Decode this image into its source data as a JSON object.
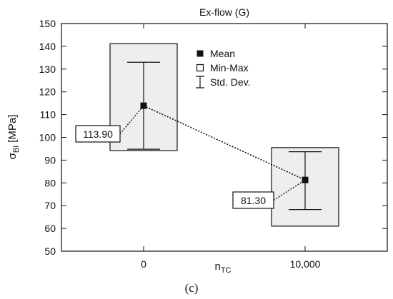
{
  "chart_data": {
    "type": "box",
    "title": "Ex-flow (G)",
    "xlabel_main": "n",
    "xlabel_sub": "TC",
    "ylabel_main": "σ",
    "ylabel_sub": "BI",
    "ylabel_unit": "[MPa]",
    "ylim": [
      50,
      150
    ],
    "yticks": [
      50,
      60,
      70,
      80,
      90,
      100,
      110,
      120,
      130,
      140,
      150
    ],
    "categories": [
      "0",
      "10,000"
    ],
    "mean": [
      113.9,
      81.3
    ],
    "mean_labels": [
      "113.90",
      "81.30"
    ],
    "min": [
      94.2,
      61.0
    ],
    "max": [
      141.2,
      95.5
    ],
    "std_low": [
      94.8,
      68.3
    ],
    "std_high": [
      133.0,
      93.7
    ],
    "legend": [
      {
        "marker": "filled-square",
        "label": "Mean"
      },
      {
        "marker": "open-square",
        "label": "Min-Max"
      },
      {
        "marker": "error-bar",
        "label": "Std. Dev."
      }
    ],
    "legend_position": "top-right",
    "grid": false,
    "colors": {
      "box_fill": "#eeeeee",
      "stroke": "#111111",
      "mean_marker": "#111111"
    }
  },
  "caption": "(c)"
}
